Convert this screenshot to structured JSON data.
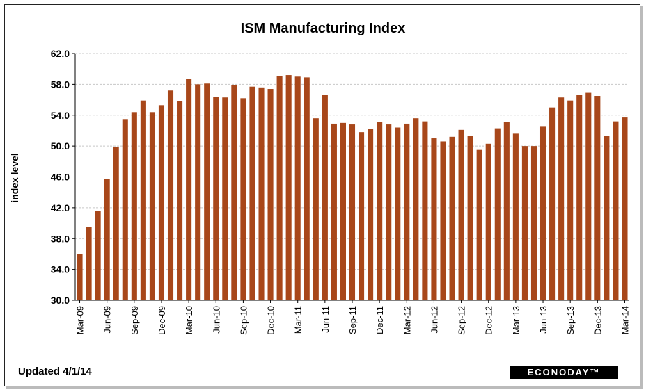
{
  "footer": {
    "updated": "Updated  4/1/14",
    "brand": "ECONODAY™"
  },
  "colors": {
    "bar": "#a8471a",
    "grid": "#c8c8c8"
  },
  "chart_data": {
    "type": "bar",
    "title": "ISM Manufacturing Index",
    "xlabel": "",
    "ylabel": "index level",
    "ylim": [
      30,
      62
    ],
    "yticks": [
      "30.0",
      "34.0",
      "38.0",
      "42.0",
      "46.0",
      "50.0",
      "54.0",
      "58.0",
      "62.0"
    ],
    "grid": true,
    "xtick_labels": [
      "Mar-09",
      "Jun-09",
      "Sep-09",
      "Dec-09",
      "Mar-10",
      "Jun-10",
      "Sep-10",
      "Dec-10",
      "Mar-11",
      "Jun-11",
      "Sep-11",
      "Dec-11",
      "Mar-12",
      "Jun-12",
      "Sep-12",
      "Dec-12",
      "Mar-13",
      "Jun-13",
      "Sep-13",
      "Dec-13",
      "Mar-14"
    ],
    "categories": [
      "Mar-09",
      "Apr-09",
      "May-09",
      "Jun-09",
      "Jul-09",
      "Aug-09",
      "Sep-09",
      "Oct-09",
      "Nov-09",
      "Dec-09",
      "Jan-10",
      "Feb-10",
      "Mar-10",
      "Apr-10",
      "May-10",
      "Jun-10",
      "Jul-10",
      "Aug-10",
      "Sep-10",
      "Oct-10",
      "Nov-10",
      "Dec-10",
      "Jan-11",
      "Feb-11",
      "Mar-11",
      "Apr-11",
      "May-11",
      "Jun-11",
      "Jul-11",
      "Aug-11",
      "Sep-11",
      "Oct-11",
      "Nov-11",
      "Dec-11",
      "Jan-12",
      "Feb-12",
      "Mar-12",
      "Apr-12",
      "May-12",
      "Jun-12",
      "Jul-12",
      "Aug-12",
      "Sep-12",
      "Oct-12",
      "Nov-12",
      "Dec-12",
      "Jan-13",
      "Feb-13",
      "Mar-13",
      "Apr-13",
      "May-13",
      "Jun-13",
      "Jul-13",
      "Aug-13",
      "Sep-13",
      "Oct-13",
      "Nov-13",
      "Dec-13",
      "Jan-14",
      "Feb-14",
      "Mar-14"
    ],
    "values": [
      36.0,
      39.5,
      41.6,
      45.7,
      49.9,
      53.5,
      54.4,
      55.9,
      54.4,
      55.3,
      57.2,
      55.8,
      58.7,
      58.0,
      58.1,
      56.4,
      56.3,
      57.9,
      56.2,
      57.7,
      57.6,
      57.4,
      59.1,
      59.2,
      59.0,
      58.9,
      53.6,
      56.6,
      52.9,
      53.0,
      52.8,
      51.8,
      52.2,
      53.1,
      52.8,
      52.4,
      52.9,
      53.6,
      53.2,
      51.0,
      50.6,
      51.2,
      52.1,
      51.3,
      49.5,
      50.3,
      52.3,
      53.1,
      51.6,
      50.0,
      50.0,
      52.5,
      55.0,
      56.3,
      55.9,
      56.6,
      56.9,
      56.5,
      51.3,
      53.2,
      53.7
    ]
  }
}
